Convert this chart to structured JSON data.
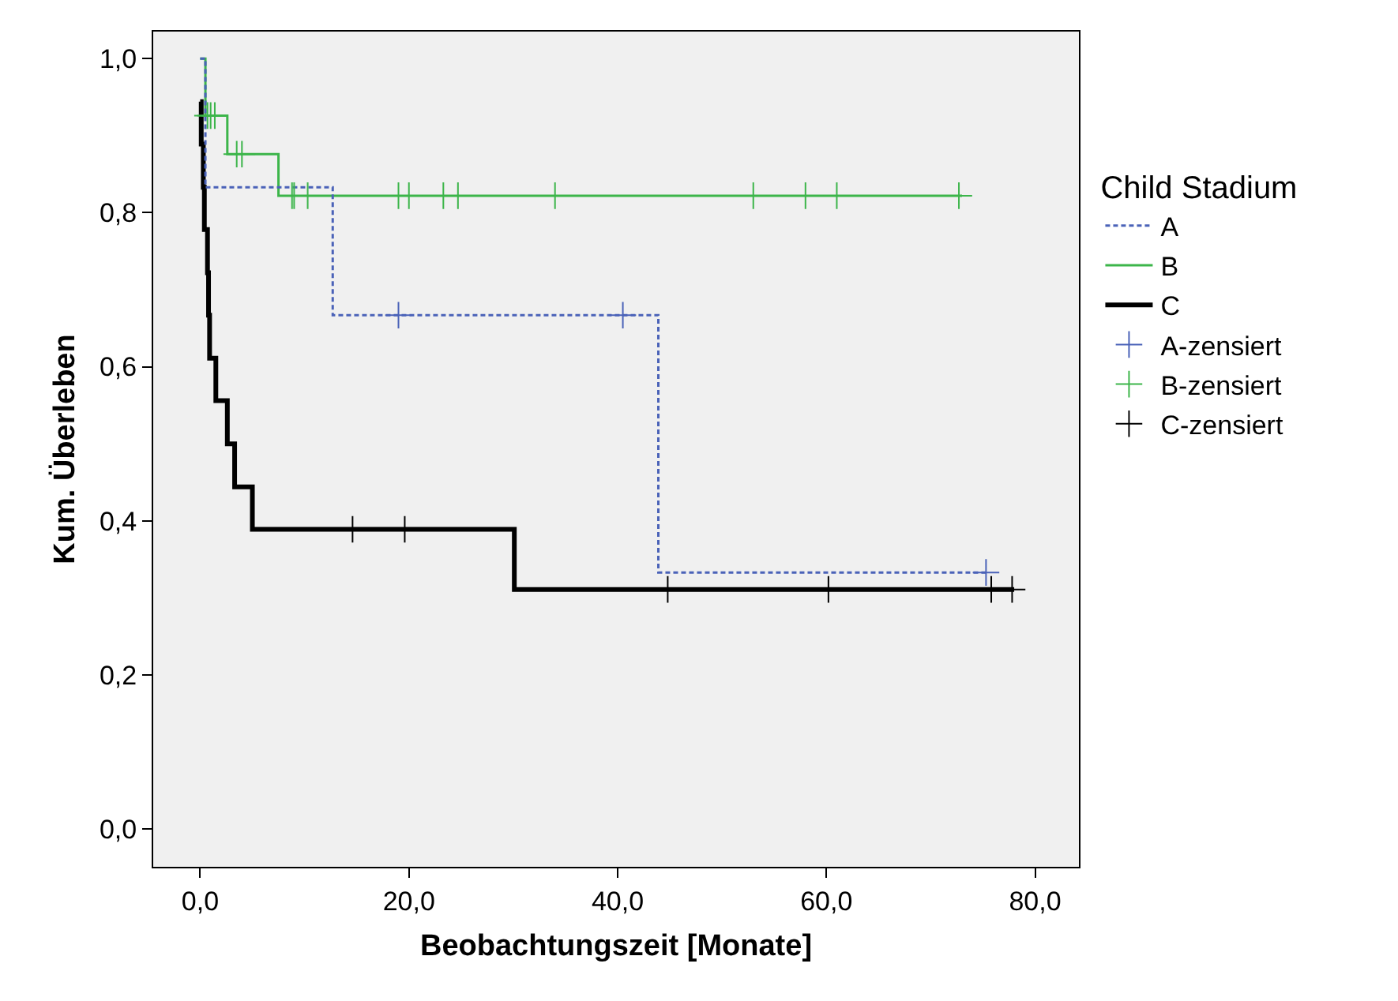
{
  "chart_data": {
    "type": "step",
    "xlabel": "Beobachtungszeit [Monate]",
    "ylabel": "Kum. Überleben",
    "legend_title": "Child Stadium",
    "xlim": [
      -4.5,
      84.2
    ],
    "ylim": [
      -0.049,
      1.035
    ],
    "xticks": [
      {
        "value": 0,
        "label": "0,0"
      },
      {
        "value": 20,
        "label": "20,0"
      },
      {
        "value": 40,
        "label": "40,0"
      },
      {
        "value": 60,
        "label": "60,0"
      },
      {
        "value": 80,
        "label": "80,0"
      }
    ],
    "yticks": [
      {
        "value": 0,
        "label": "0,0"
      },
      {
        "value": 0.2,
        "label": "0,2"
      },
      {
        "value": 0.4,
        "label": "0,4"
      },
      {
        "value": 0.6,
        "label": "0,6"
      },
      {
        "value": 0.8,
        "label": "0,8"
      },
      {
        "value": 1,
        "label": "1,0"
      }
    ],
    "grid": false,
    "legend": "right",
    "series": [
      {
        "name": "A",
        "color": "#4a62b8",
        "line_style": "dashed",
        "x": [
          0,
          0.5,
          12.7,
          43.9,
          75.5
        ],
        "values": [
          1,
          0.833,
          0.667,
          0.333,
          0.333
        ]
      },
      {
        "name": "B",
        "color": "#3cb54a",
        "line_style": "solid",
        "x": [
          0,
          0.5,
          2.6,
          7.5,
          73
        ],
        "values": [
          1,
          0.926,
          0.876,
          0.822,
          0.822
        ]
      },
      {
        "name": "C",
        "color": "#000000",
        "line_style": "solid",
        "x": [
          0,
          0.1,
          0.3,
          0.4,
          0.7,
          0.8,
          0.9,
          1.5,
          2.6,
          3.3,
          5.0,
          30.1,
          78
        ],
        "values": [
          0.944,
          0.889,
          0.833,
          0.778,
          0.722,
          0.667,
          0.611,
          0.556,
          0.5,
          0.444,
          0.389,
          0.311,
          0.311
        ]
      },
      {
        "name": "A-zensiert",
        "type": "scatter",
        "marker": "cross",
        "color": "#4a62b8",
        "x": [
          19,
          40.5,
          75.3
        ],
        "values": [
          0.667,
          0.667,
          0.333
        ]
      },
      {
        "name": "B-zensiert",
        "type": "scatter",
        "marker": "cross",
        "color": "#3cb54a",
        "x": [
          0.7,
          1.0,
          1.4,
          3.5,
          4.0,
          8.8,
          9.0,
          10.3,
          19,
          20,
          23.3,
          24.7,
          34,
          53,
          58,
          61,
          72.7
        ],
        "values": [
          0.926,
          0.926,
          0.926,
          0.876,
          0.876,
          0.822,
          0.822,
          0.822,
          0.822,
          0.822,
          0.822,
          0.822,
          0.822,
          0.822,
          0.822,
          0.822,
          0.822
        ]
      },
      {
        "name": "C-zensiert",
        "type": "scatter",
        "marker": "cross",
        "color": "#000000",
        "x": [
          14.6,
          19.6,
          44.8,
          60.2,
          75.8,
          77.8
        ],
        "values": [
          0.389,
          0.389,
          0.311,
          0.311,
          0.311,
          0.311
        ]
      }
    ]
  }
}
